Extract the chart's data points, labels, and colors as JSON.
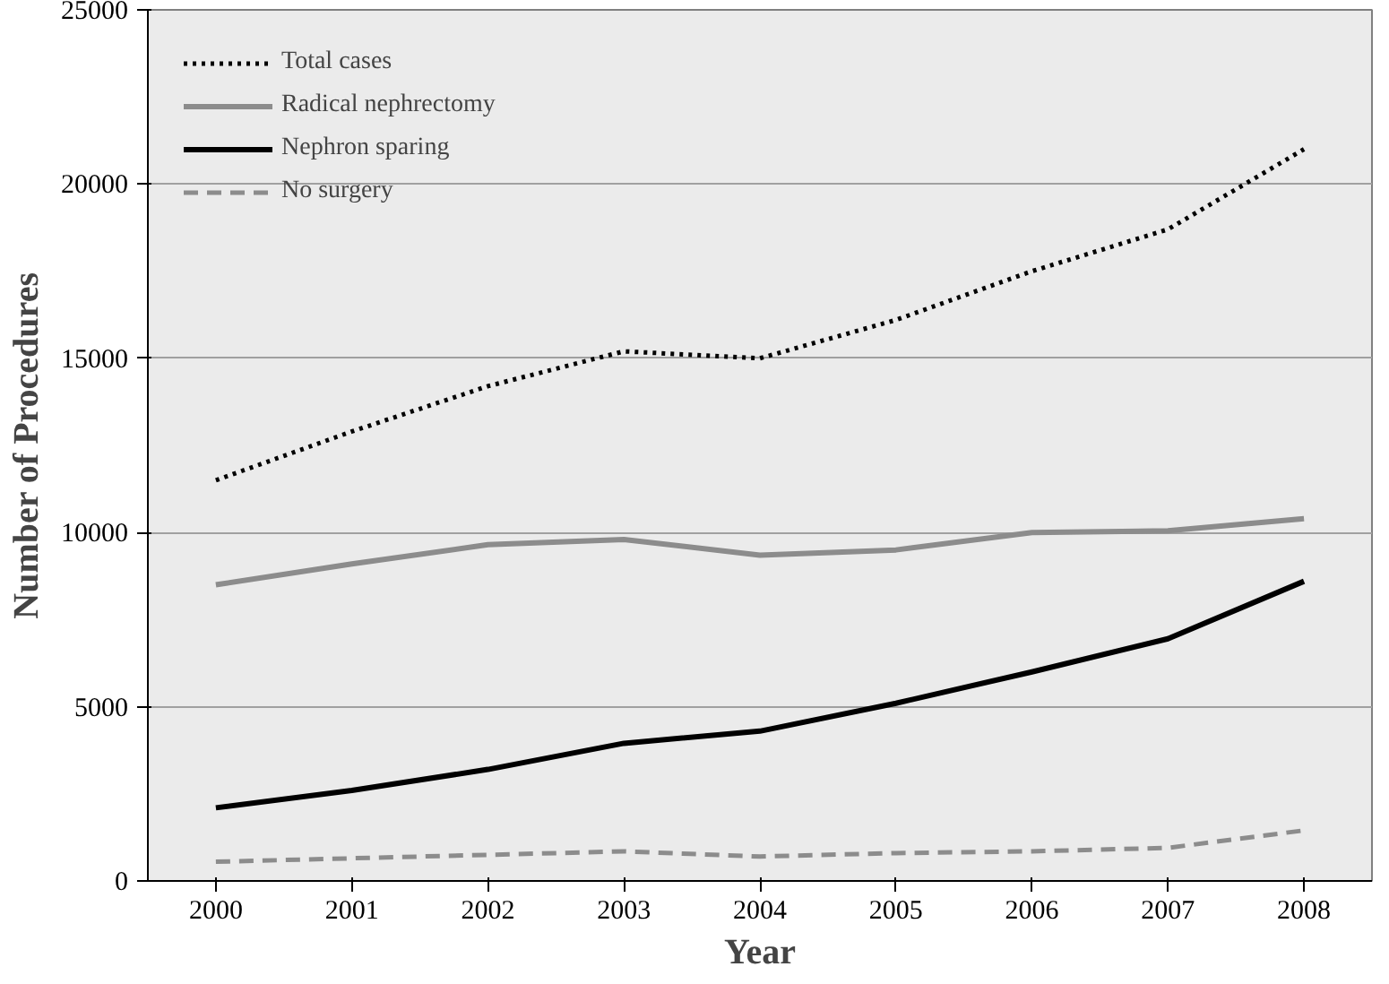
{
  "chart_data": {
    "type": "line",
    "xlabel": "Year",
    "ylabel": "Number of Procedures",
    "categories": [
      "2000",
      "2001",
      "2002",
      "2003",
      "2004",
      "2005",
      "2006",
      "2007",
      "2008"
    ],
    "series": [
      {
        "name": "Total cases",
        "color": "#000000",
        "line_style": "dotted",
        "values": [
          11500,
          12900,
          14200,
          15200,
          15000,
          16100,
          17500,
          18700,
          21000
        ]
      },
      {
        "name": "Radical nephrectomy",
        "color": "#8c8c8c",
        "line_style": "solid",
        "values": [
          8500,
          9100,
          9650,
          9800,
          9350,
          9500,
          10000,
          10050,
          10400
        ]
      },
      {
        "name": "Nephron sparing",
        "color": "#000000",
        "line_style": "solid",
        "values": [
          2100,
          2600,
          3200,
          3950,
          4300,
          5100,
          6000,
          6950,
          8600
        ]
      },
      {
        "name": "No surgery",
        "color": "#8c8c8c",
        "line_style": "dashed",
        "values": [
          550,
          650,
          750,
          850,
          700,
          800,
          850,
          950,
          1450
        ]
      }
    ],
    "ylim": [
      0,
      25000
    ],
    "yticks": [
      0,
      5000,
      10000,
      15000,
      20000,
      25000
    ],
    "grid": "y",
    "legend": "top left",
    "marker": "none"
  }
}
